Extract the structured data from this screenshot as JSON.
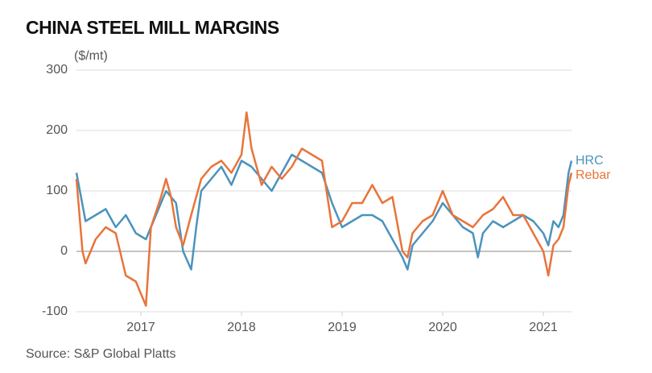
{
  "chart_data": {
    "type": "line",
    "title": "CHINA STEEL MILL MARGINS",
    "y_label": "($/mt)",
    "source": "Source: S&P Global Platts",
    "xlim": [
      2016.36,
      2021.28
    ],
    "xticks": [
      2017,
      2018,
      2019,
      2020,
      2021
    ],
    "ylim": [
      -100,
      300
    ],
    "yticks": [
      -100,
      0,
      100,
      200,
      300
    ],
    "grid": true,
    "series": [
      {
        "name": "HRC",
        "color": "#4b93bd",
        "x": [
          2016.36,
          2016.45,
          2016.55,
          2016.65,
          2016.75,
          2016.85,
          2016.95,
          2017.05,
          2017.15,
          2017.25,
          2017.35,
          2017.42,
          2017.5,
          2017.55,
          2017.6,
          2017.7,
          2017.8,
          2017.9,
          2018.0,
          2018.1,
          2018.2,
          2018.3,
          2018.4,
          2018.5,
          2018.6,
          2018.7,
          2018.8,
          2018.9,
          2019.0,
          2019.1,
          2019.2,
          2019.3,
          2019.4,
          2019.5,
          2019.6,
          2019.65,
          2019.7,
          2019.8,
          2019.9,
          2020.0,
          2020.1,
          2020.2,
          2020.3,
          2020.35,
          2020.4,
          2020.5,
          2020.6,
          2020.7,
          2020.8,
          2020.9,
          2021.0,
          2021.05,
          2021.1,
          2021.15,
          2021.2,
          2021.25,
          2021.28
        ],
        "values": [
          130,
          50,
          60,
          70,
          40,
          60,
          30,
          20,
          60,
          100,
          80,
          0,
          -30,
          40,
          100,
          120,
          140,
          110,
          150,
          140,
          120,
          100,
          130,
          160,
          150,
          140,
          130,
          80,
          40,
          50,
          60,
          60,
          50,
          20,
          -10,
          -30,
          10,
          30,
          50,
          80,
          60,
          40,
          30,
          -10,
          30,
          50,
          40,
          50,
          60,
          50,
          30,
          10,
          50,
          40,
          60,
          130,
          150
        ]
      },
      {
        "name": "Rebar",
        "color": "#e8743b",
        "x": [
          2016.36,
          2016.42,
          2016.45,
          2016.55,
          2016.65,
          2016.75,
          2016.85,
          2016.95,
          2017.0,
          2017.05,
          2017.1,
          2017.2,
          2017.25,
          2017.3,
          2017.35,
          2017.42,
          2017.5,
          2017.6,
          2017.7,
          2017.8,
          2017.9,
          2018.0,
          2018.05,
          2018.1,
          2018.2,
          2018.3,
          2018.4,
          2018.5,
          2018.6,
          2018.7,
          2018.8,
          2018.9,
          2019.0,
          2019.1,
          2019.2,
          2019.3,
          2019.4,
          2019.5,
          2019.6,
          2019.65,
          2019.7,
          2019.8,
          2019.9,
          2020.0,
          2020.1,
          2020.2,
          2020.3,
          2020.4,
          2020.5,
          2020.6,
          2020.7,
          2020.8,
          2020.9,
          2021.0,
          2021.05,
          2021.1,
          2021.15,
          2021.2,
          2021.25,
          2021.28
        ],
        "values": [
          120,
          0,
          -20,
          20,
          40,
          30,
          -40,
          -50,
          -70,
          -90,
          40,
          90,
          120,
          90,
          40,
          10,
          60,
          120,
          140,
          150,
          130,
          160,
          230,
          170,
          110,
          140,
          120,
          140,
          170,
          160,
          150,
          40,
          50,
          80,
          80,
          110,
          80,
          90,
          0,
          -10,
          30,
          50,
          60,
          100,
          60,
          50,
          40,
          60,
          70,
          90,
          60,
          60,
          30,
          0,
          -40,
          10,
          20,
          40,
          110,
          130
        ]
      }
    ]
  }
}
